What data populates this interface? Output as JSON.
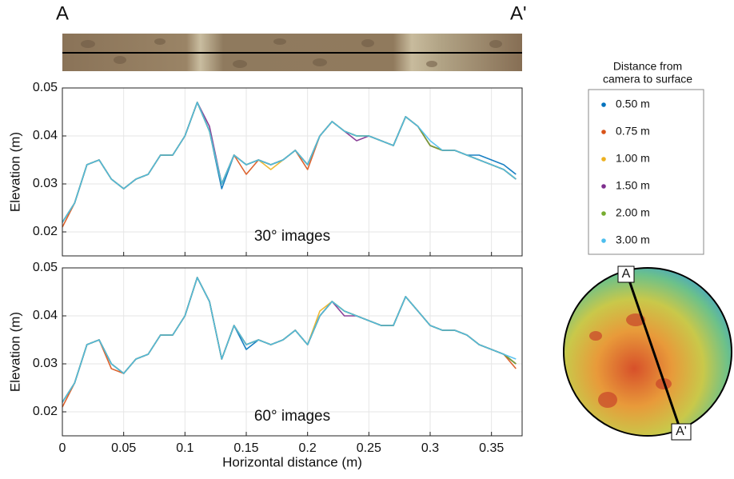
{
  "section_labels": {
    "start": "A",
    "end": "A'"
  },
  "map_labels": {
    "start": "A",
    "end": "A'"
  },
  "legend_title": [
    "Distance from",
    "camera to surface"
  ],
  "chart_data": [
    {
      "type": "line",
      "annotation": "30° images",
      "y_label": "Elevation (m)",
      "show_xtick_labels": false,
      "grid": true,
      "xlim": [
        0,
        0.375
      ],
      "ylim": [
        0.015,
        0.05
      ],
      "xticks": [
        0,
        0.05,
        0.1,
        0.15,
        0.2,
        0.25,
        0.3,
        0.35
      ],
      "yticks": [
        0.02,
        0.03,
        0.04,
        0.05
      ],
      "x": [
        0,
        0.01,
        0.02,
        0.03,
        0.04,
        0.05,
        0.06,
        0.07,
        0.08,
        0.09,
        0.1,
        0.11,
        0.12,
        0.13,
        0.14,
        0.15,
        0.16,
        0.17,
        0.18,
        0.19,
        0.2,
        0.21,
        0.22,
        0.23,
        0.24,
        0.25,
        0.26,
        0.27,
        0.28,
        0.29,
        0.3,
        0.31,
        0.32,
        0.33,
        0.34,
        0.35,
        0.36,
        0.37
      ],
      "series": [
        {
          "name": "0.50 m",
          "color": "#0072BD",
          "values": [
            0.022,
            0.026,
            0.034,
            0.035,
            0.031,
            0.029,
            0.031,
            0.032,
            0.036,
            0.036,
            0.04,
            0.047,
            0.041,
            0.029,
            0.036,
            0.034,
            0.035,
            0.034,
            0.035,
            0.037,
            0.034,
            0.04,
            0.043,
            0.041,
            0.04,
            0.04,
            0.039,
            0.038,
            0.044,
            0.042,
            0.038,
            0.037,
            0.037,
            0.036,
            0.036,
            0.035,
            0.034,
            0.032
          ]
        },
        {
          "name": "0.75 m",
          "color": "#D95319",
          "values": [
            0.021,
            0.026,
            0.034,
            0.035,
            0.031,
            0.029,
            0.031,
            0.032,
            0.036,
            0.036,
            0.04,
            0.047,
            0.041,
            0.03,
            0.036,
            0.032,
            0.035,
            0.034,
            0.035,
            0.037,
            0.033,
            0.04,
            0.043,
            0.041,
            0.04,
            0.04,
            0.039,
            0.038,
            0.044,
            0.042,
            0.038,
            0.037,
            0.037,
            0.036,
            0.035,
            0.034,
            0.033,
            0.031
          ]
        },
        {
          "name": "1.00 m",
          "color": "#EDB120",
          "values": [
            0.022,
            0.026,
            0.034,
            0.035,
            0.031,
            0.029,
            0.031,
            0.032,
            0.036,
            0.036,
            0.04,
            0.047,
            0.041,
            0.03,
            0.036,
            0.034,
            0.035,
            0.033,
            0.035,
            0.037,
            0.034,
            0.04,
            0.043,
            0.041,
            0.04,
            0.04,
            0.039,
            0.038,
            0.044,
            0.042,
            0.038,
            0.037,
            0.037,
            0.036,
            0.035,
            0.034,
            0.033,
            0.031
          ]
        },
        {
          "name": "1.50 m",
          "color": "#7E2F8E",
          "values": [
            0.022,
            0.026,
            0.034,
            0.035,
            0.031,
            0.029,
            0.031,
            0.032,
            0.036,
            0.036,
            0.04,
            0.047,
            0.042,
            0.03,
            0.036,
            0.034,
            0.035,
            0.034,
            0.035,
            0.037,
            0.034,
            0.04,
            0.043,
            0.041,
            0.039,
            0.04,
            0.039,
            0.038,
            0.044,
            0.042,
            0.038,
            0.037,
            0.037,
            0.036,
            0.035,
            0.034,
            0.033,
            0.031
          ]
        },
        {
          "name": "2.00 m",
          "color": "#77AC30",
          "values": [
            0.022,
            0.026,
            0.034,
            0.035,
            0.031,
            0.029,
            0.031,
            0.032,
            0.036,
            0.036,
            0.04,
            0.047,
            0.041,
            0.03,
            0.036,
            0.034,
            0.035,
            0.034,
            0.035,
            0.037,
            0.034,
            0.04,
            0.043,
            0.041,
            0.04,
            0.04,
            0.039,
            0.038,
            0.044,
            0.042,
            0.038,
            0.037,
            0.037,
            0.036,
            0.035,
            0.034,
            0.033,
            0.031
          ]
        },
        {
          "name": "3.00 m",
          "color": "#4DBEEE",
          "values": [
            0.022,
            0.026,
            0.034,
            0.035,
            0.031,
            0.029,
            0.031,
            0.032,
            0.036,
            0.036,
            0.04,
            0.047,
            0.041,
            0.03,
            0.036,
            0.034,
            0.035,
            0.034,
            0.035,
            0.037,
            0.034,
            0.04,
            0.043,
            0.041,
            0.04,
            0.04,
            0.039,
            0.038,
            0.044,
            0.042,
            0.039,
            0.037,
            0.037,
            0.036,
            0.035,
            0.034,
            0.033,
            0.031
          ]
        }
      ]
    },
    {
      "type": "line",
      "annotation": "60° images",
      "y_label": "Elevation (m)",
      "x_label": "Horizontal distance (m)",
      "show_xtick_labels": true,
      "grid": true,
      "xlim": [
        0,
        0.375
      ],
      "ylim": [
        0.015,
        0.05
      ],
      "xticks": [
        0,
        0.05,
        0.1,
        0.15,
        0.2,
        0.25,
        0.3,
        0.35
      ],
      "yticks": [
        0.02,
        0.03,
        0.04,
        0.05
      ],
      "x": [
        0,
        0.01,
        0.02,
        0.03,
        0.04,
        0.05,
        0.06,
        0.07,
        0.08,
        0.09,
        0.1,
        0.11,
        0.12,
        0.13,
        0.14,
        0.15,
        0.16,
        0.17,
        0.18,
        0.19,
        0.2,
        0.21,
        0.22,
        0.23,
        0.24,
        0.25,
        0.26,
        0.27,
        0.28,
        0.29,
        0.3,
        0.31,
        0.32,
        0.33,
        0.34,
        0.35,
        0.36,
        0.37
      ],
      "series": [
        {
          "name": "0.50 m",
          "color": "#0072BD",
          "values": [
            0.022,
            0.026,
            0.034,
            0.035,
            0.03,
            0.028,
            0.031,
            0.032,
            0.036,
            0.036,
            0.04,
            0.048,
            0.043,
            0.031,
            0.038,
            0.033,
            0.035,
            0.034,
            0.035,
            0.037,
            0.034,
            0.04,
            0.043,
            0.041,
            0.04,
            0.039,
            0.038,
            0.038,
            0.044,
            0.041,
            0.038,
            0.037,
            0.037,
            0.036,
            0.034,
            0.033,
            0.032,
            0.03
          ]
        },
        {
          "name": "0.75 m",
          "color": "#D95319",
          "values": [
            0.021,
            0.026,
            0.034,
            0.035,
            0.029,
            0.028,
            0.031,
            0.032,
            0.036,
            0.036,
            0.04,
            0.048,
            0.043,
            0.031,
            0.038,
            0.034,
            0.035,
            0.034,
            0.035,
            0.037,
            0.034,
            0.04,
            0.043,
            0.041,
            0.04,
            0.039,
            0.038,
            0.038,
            0.044,
            0.041,
            0.038,
            0.037,
            0.037,
            0.036,
            0.034,
            0.033,
            0.032,
            0.029
          ]
        },
        {
          "name": "1.00 m",
          "color": "#EDB120",
          "values": [
            0.022,
            0.026,
            0.034,
            0.035,
            0.03,
            0.028,
            0.031,
            0.032,
            0.036,
            0.036,
            0.04,
            0.048,
            0.043,
            0.031,
            0.038,
            0.034,
            0.035,
            0.034,
            0.035,
            0.037,
            0.034,
            0.041,
            0.043,
            0.041,
            0.04,
            0.039,
            0.038,
            0.038,
            0.044,
            0.041,
            0.038,
            0.037,
            0.037,
            0.036,
            0.034,
            0.033,
            0.032,
            0.03
          ]
        },
        {
          "name": "1.50 m",
          "color": "#7E2F8E",
          "values": [
            0.022,
            0.026,
            0.034,
            0.035,
            0.03,
            0.028,
            0.031,
            0.032,
            0.036,
            0.036,
            0.04,
            0.048,
            0.043,
            0.031,
            0.038,
            0.034,
            0.035,
            0.034,
            0.035,
            0.037,
            0.034,
            0.04,
            0.043,
            0.04,
            0.04,
            0.039,
            0.038,
            0.038,
            0.044,
            0.041,
            0.038,
            0.037,
            0.037,
            0.036,
            0.034,
            0.033,
            0.032,
            0.03
          ]
        },
        {
          "name": "2.00 m",
          "color": "#77AC30",
          "values": [
            0.022,
            0.026,
            0.034,
            0.035,
            0.03,
            0.028,
            0.031,
            0.032,
            0.036,
            0.036,
            0.04,
            0.048,
            0.043,
            0.031,
            0.038,
            0.034,
            0.035,
            0.034,
            0.035,
            0.037,
            0.034,
            0.04,
            0.043,
            0.041,
            0.04,
            0.039,
            0.038,
            0.038,
            0.044,
            0.041,
            0.038,
            0.037,
            0.037,
            0.036,
            0.034,
            0.033,
            0.032,
            0.03
          ]
        },
        {
          "name": "3.00 m",
          "color": "#4DBEEE",
          "values": [
            0.022,
            0.026,
            0.034,
            0.035,
            0.03,
            0.028,
            0.031,
            0.032,
            0.036,
            0.036,
            0.04,
            0.048,
            0.043,
            0.031,
            0.038,
            0.034,
            0.035,
            0.034,
            0.035,
            0.037,
            0.034,
            0.04,
            0.043,
            0.041,
            0.04,
            0.039,
            0.038,
            0.038,
            0.044,
            0.041,
            0.038,
            0.037,
            0.037,
            0.036,
            0.034,
            0.033,
            0.032,
            0.031
          ]
        }
      ]
    }
  ]
}
